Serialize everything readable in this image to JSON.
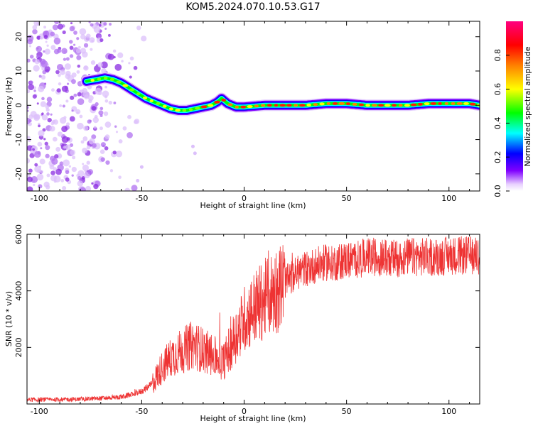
{
  "title": "KOM5.2024.070.10.53.G17",
  "chart_data": [
    {
      "type": "heatmap",
      "xlabel": "Height of straight line (km)",
      "ylabel": "Frequency (Hz)",
      "xlim": [
        -106,
        115
      ],
      "ylim": [
        -25,
        24.5
      ],
      "xticks": [
        -100,
        -50,
        0,
        50,
        100
      ],
      "yticks": [
        -20,
        -10,
        0,
        10,
        20
      ],
      "colorbar": {
        "label": "Normalized spectral amplitude",
        "range": [
          0,
          1
        ],
        "ticks": [
          0.0,
          0.2,
          0.4,
          0.6,
          0.8
        ],
        "tick_labels": [
          "0.0",
          "0.2",
          "0.4",
          "0.6",
          "0.8"
        ],
        "colors": [
          "#ffffff",
          "#8000ff",
          "#0000ff",
          "#00ffff",
          "#00ff00",
          "#ffff00",
          "#ff8000",
          "#ff0000",
          "#ff0080"
        ]
      },
      "ridge": {
        "x": [
          -77,
          -72,
          -68,
          -64,
          -60,
          -56,
          -52,
          -48,
          -44,
          -40,
          -36,
          -32,
          -28,
          -24,
          -20,
          -16,
          -13,
          -11,
          -8,
          -4,
          0,
          10,
          20,
          30,
          40,
          50,
          60,
          70,
          80,
          90,
          100,
          110,
          115
        ],
        "y": [
          7,
          7.5,
          8,
          7.5,
          6.5,
          5,
          3.5,
          2,
          1,
          0,
          -1,
          -1.5,
          -1.5,
          -1,
          -0.5,
          0,
          1,
          2,
          0.5,
          -0.5,
          -0.5,
          0,
          0,
          0,
          0.5,
          0.5,
          0,
          0,
          0,
          0.5,
          0.5,
          0.5,
          0
        ]
      }
    },
    {
      "type": "line",
      "xlabel": "Height of straight line (km)",
      "ylabel": "SNR (10 * v/v)",
      "xlim": [
        -106,
        115
      ],
      "ylim": [
        0,
        6000
      ],
      "xticks": [
        -100,
        -50,
        0,
        50,
        100
      ],
      "yticks": [
        2000,
        4000,
        6000
      ],
      "color": "#ee3333",
      "series": [
        {
          "x": [
            -106,
            -100,
            -90,
            -80,
            -70,
            -60,
            -55,
            -50,
            -45,
            -40,
            -35,
            -30,
            -25,
            -20,
            -15,
            -10,
            -5,
            0,
            5,
            10,
            15,
            20,
            25,
            30,
            35,
            40,
            45,
            50,
            55,
            60,
            65,
            70,
            75,
            80,
            85,
            90,
            95,
            100,
            105,
            110,
            115
          ],
          "y": [
            150,
            150,
            160,
            170,
            200,
            250,
            330,
            450,
            700,
            1300,
            1700,
            1900,
            2100,
            1900,
            1700,
            1500,
            2300,
            3000,
            3400,
            3700,
            4000,
            4300,
            4600,
            4800,
            4900,
            5000,
            5000,
            5100,
            5100,
            5200,
            5200,
            5150,
            5150,
            5200,
            5200,
            5200,
            5200,
            5250,
            5250,
            5250,
            5250
          ]
        }
      ]
    }
  ]
}
